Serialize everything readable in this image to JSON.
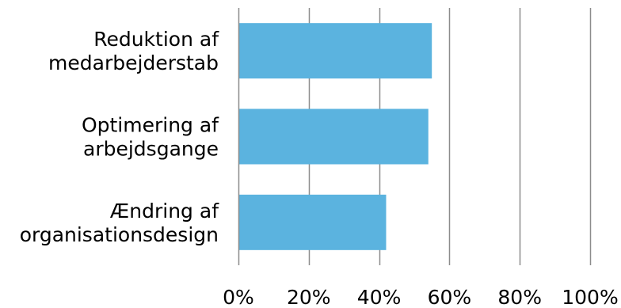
{
  "chart_data": {
    "type": "bar",
    "orientation": "horizontal",
    "categories": [
      [
        "Reduktion af",
        "medarbejderstab"
      ],
      [
        "Optimering af",
        "arbejdsgange"
      ],
      [
        "Ændring af",
        "organisationsdesign"
      ]
    ],
    "values": [
      55,
      54,
      42
    ],
    "xlim": [
      0,
      100
    ],
    "xticks": [
      0,
      20,
      40,
      60,
      80,
      100
    ],
    "xtick_labels": [
      "0%",
      "20%",
      "40%",
      "60%",
      "80%",
      "100%"
    ],
    "title": "",
    "xlabel": "",
    "ylabel": "",
    "grid": "vertical",
    "colors": {
      "bar": "#5BB3DF",
      "grid": "#8c8c8c",
      "axis": "#8c8c8c"
    }
  }
}
